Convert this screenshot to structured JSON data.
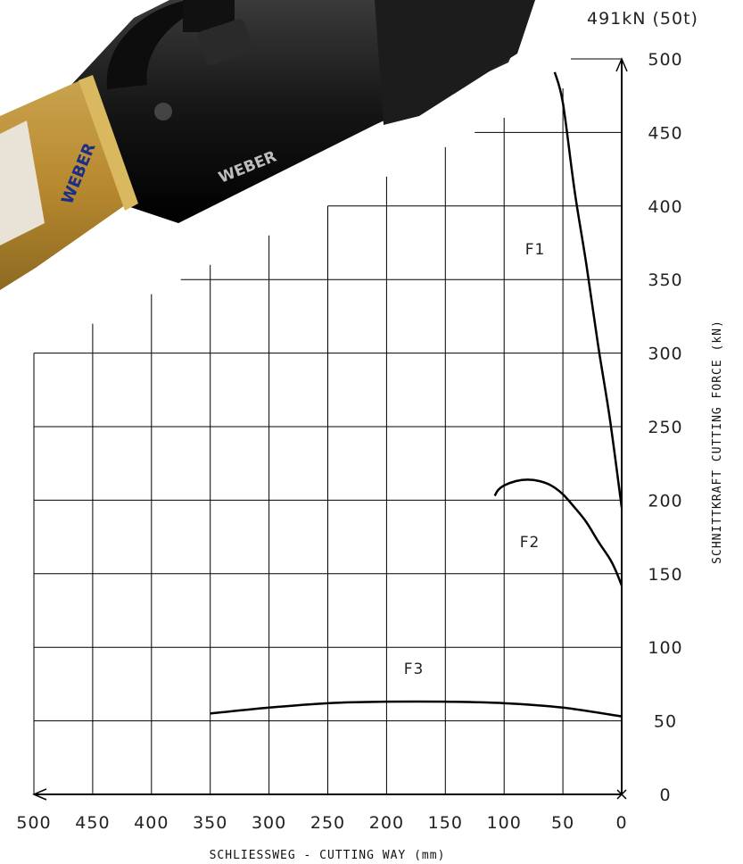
{
  "chart_data": {
    "type": "line",
    "title": "",
    "max_label": "491kN (50t)",
    "xlabel": "SCHLIESSWEG - CUTTING WAY (mm)",
    "ylabel": "SCHNITTKRAFT CUTTING FORCE (kN)",
    "xlim": [
      500,
      0
    ],
    "ylim": [
      0,
      500
    ],
    "x_ticks": [
      500,
      450,
      400,
      350,
      300,
      250,
      200,
      150,
      100,
      50,
      0
    ],
    "y_ticks": [
      0,
      50,
      100,
      150,
      200,
      250,
      300,
      350,
      400,
      450,
      500
    ],
    "grid": true,
    "series": [
      {
        "name": "F1",
        "color": "#000000",
        "x": [
          57,
          50,
          40,
          30,
          20,
          10,
          0
        ],
        "y": [
          491,
          470,
          410,
          360,
          305,
          255,
          195
        ]
      },
      {
        "name": "F2",
        "color": "#000000",
        "x": [
          108,
          105,
          100,
          90,
          80,
          70,
          60,
          50,
          40,
          30,
          20,
          10,
          5,
          0
        ],
        "y": [
          203,
          207,
          210,
          213,
          214,
          213,
          210,
          204,
          195,
          185,
          172,
          160,
          152,
          142
        ]
      },
      {
        "name": "F3",
        "color": "#000000",
        "x": [
          350,
          300,
          250,
          200,
          150,
          100,
          50,
          0
        ],
        "y": [
          55,
          59,
          62,
          63,
          63,
          62,
          59,
          53
        ]
      }
    ]
  },
  "product_image": {
    "brand_text": "WEBER",
    "icon": "weber-rescue-cutter-tool-image"
  }
}
